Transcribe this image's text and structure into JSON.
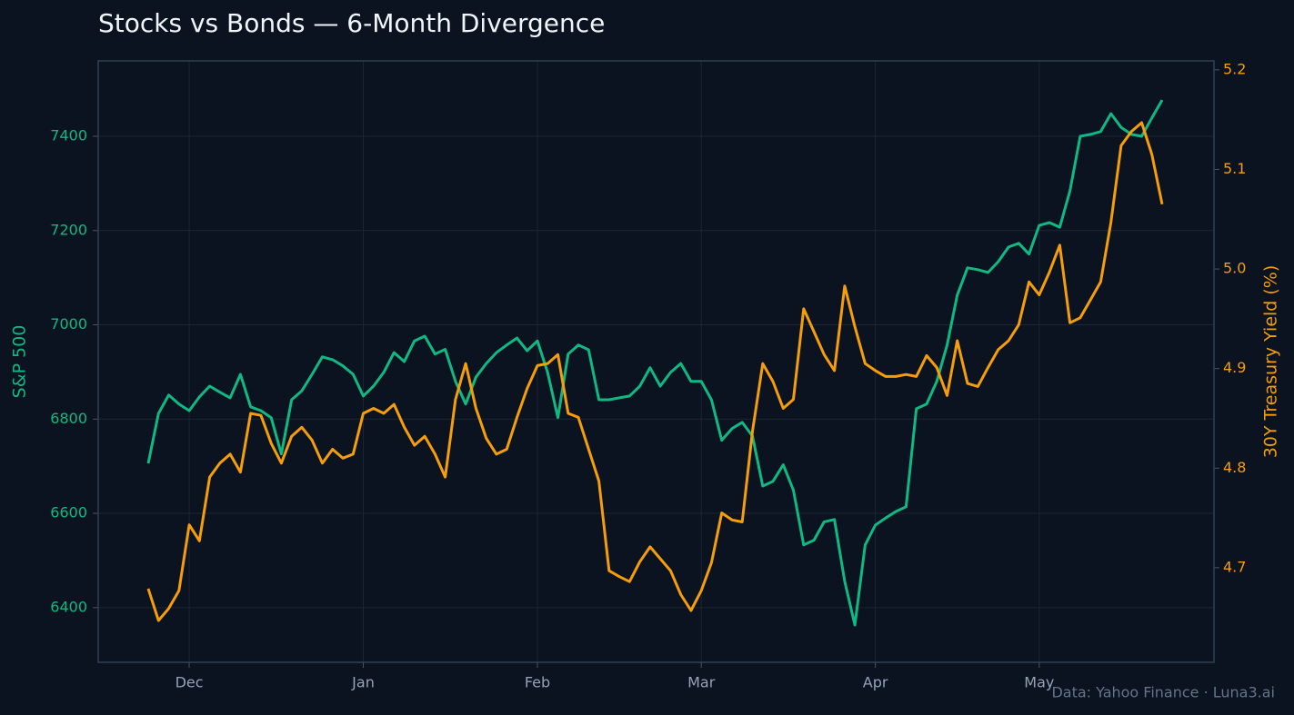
{
  "chart_data": {
    "type": "line",
    "title": "Stocks vs Bonds — 6-Month Divergence",
    "source": "Data: Yahoo Finance · Luna3.ai",
    "ylabel": "S&P 500",
    "y2label": "30Y Treasury Yield (%)",
    "categories": [
      null,
      null,
      null,
      null,
      "Dec",
      null,
      null,
      null,
      null,
      null,
      null,
      null,
      null,
      null,
      null,
      null,
      null,
      null,
      null,
      null,
      null,
      "Jan",
      null,
      null,
      null,
      null,
      null,
      null,
      null,
      null,
      null,
      null,
      null,
      null,
      null,
      null,
      null,
      null,
      "Feb",
      null,
      null,
      null,
      null,
      null,
      null,
      null,
      null,
      null,
      null,
      null,
      null,
      null,
      null,
      null,
      "Mar",
      null,
      null,
      null,
      null,
      null,
      null,
      null,
      null,
      null,
      null,
      null,
      null,
      null,
      null,
      null,
      null,
      "Apr",
      null,
      null,
      null,
      null,
      null,
      null,
      null,
      null,
      null,
      null,
      null,
      null,
      null,
      null,
      null,
      "May",
      null,
      null,
      null,
      null,
      null,
      null,
      null,
      null,
      null,
      null,
      null,
      null
    ],
    "series": [
      {
        "name": "S&P 500",
        "color": "#10b981",
        "values": [
          6706,
          6812,
          6851,
          6832,
          6818,
          6847,
          6870,
          6857,
          6845,
          6895,
          6826,
          6818,
          6803,
          6726,
          6841,
          6860,
          6895,
          6932,
          6926,
          6913,
          6895,
          6849,
          6870,
          6899,
          6941,
          6922,
          6966,
          6976,
          6938,
          6948,
          6880,
          6832,
          6889,
          6918,
          6941,
          6957,
          6972,
          6945,
          6966,
          6899,
          6803,
          6938,
          6957,
          6947,
          6841,
          6841,
          6845,
          6849,
          6870,
          6909,
          6870,
          6899,
          6918,
          6880,
          6880,
          6841,
          6755,
          6780,
          6793,
          6764,
          6658,
          6668,
          6703,
          6649,
          6533,
          6543,
          6582,
          6587,
          6456,
          6363,
          6533,
          6575,
          6590,
          6604,
          6614,
          6822,
          6832,
          6880,
          6957,
          7063,
          7121,
          7117,
          7111,
          7134,
          7165,
          7173,
          7150,
          7211,
          7217,
          7207,
          7284,
          7400,
          7404,
          7410,
          7448,
          7419,
          7404,
          7400,
          7439,
          7477
        ]
      },
      {
        "name": "30Y Treasury Yield (%)",
        "color": "#f59e0b",
        "axis": "y2",
        "values": [
          4.679,
          4.647,
          4.659,
          4.677,
          4.743,
          4.727,
          4.791,
          4.805,
          4.814,
          4.796,
          4.855,
          4.853,
          4.825,
          4.805,
          4.832,
          4.841,
          4.828,
          4.805,
          4.819,
          4.81,
          4.814,
          4.855,
          4.86,
          4.855,
          4.864,
          4.841,
          4.823,
          4.832,
          4.814,
          4.791,
          4.869,
          4.905,
          4.86,
          4.83,
          4.814,
          4.819,
          4.851,
          4.88,
          4.903,
          4.905,
          4.914,
          4.855,
          4.851,
          4.819,
          4.787,
          4.697,
          4.691,
          4.686,
          4.706,
          4.721,
          4.709,
          4.697,
          4.673,
          4.657,
          4.677,
          4.705,
          4.755,
          4.748,
          4.746,
          4.837,
          4.905,
          4.887,
          4.86,
          4.869,
          4.96,
          4.937,
          4.914,
          4.898,
          4.983,
          4.942,
          4.905,
          4.898,
          4.892,
          4.892,
          4.894,
          4.892,
          4.913,
          4.901,
          4.873,
          4.928,
          4.885,
          4.882,
          4.901,
          4.919,
          4.928,
          4.944,
          4.987,
          4.974,
          4.997,
          5.024,
          4.946,
          4.951,
          4.969,
          4.987,
          5.047,
          5.124,
          5.138,
          5.147,
          5.115,
          5.065
        ]
      }
    ],
    "ylim": [
      6284,
      7560
    ],
    "yticks": [
      6400,
      6600,
      6800,
      7000,
      7200,
      7400
    ],
    "y2lim": [
      4.605,
      5.209
    ],
    "y2ticks": [
      4.7,
      4.8,
      4.9,
      {
        "value": 5,
        "label": "5.0"
      },
      5.1,
      5.2
    ],
    "grid": true
  }
}
